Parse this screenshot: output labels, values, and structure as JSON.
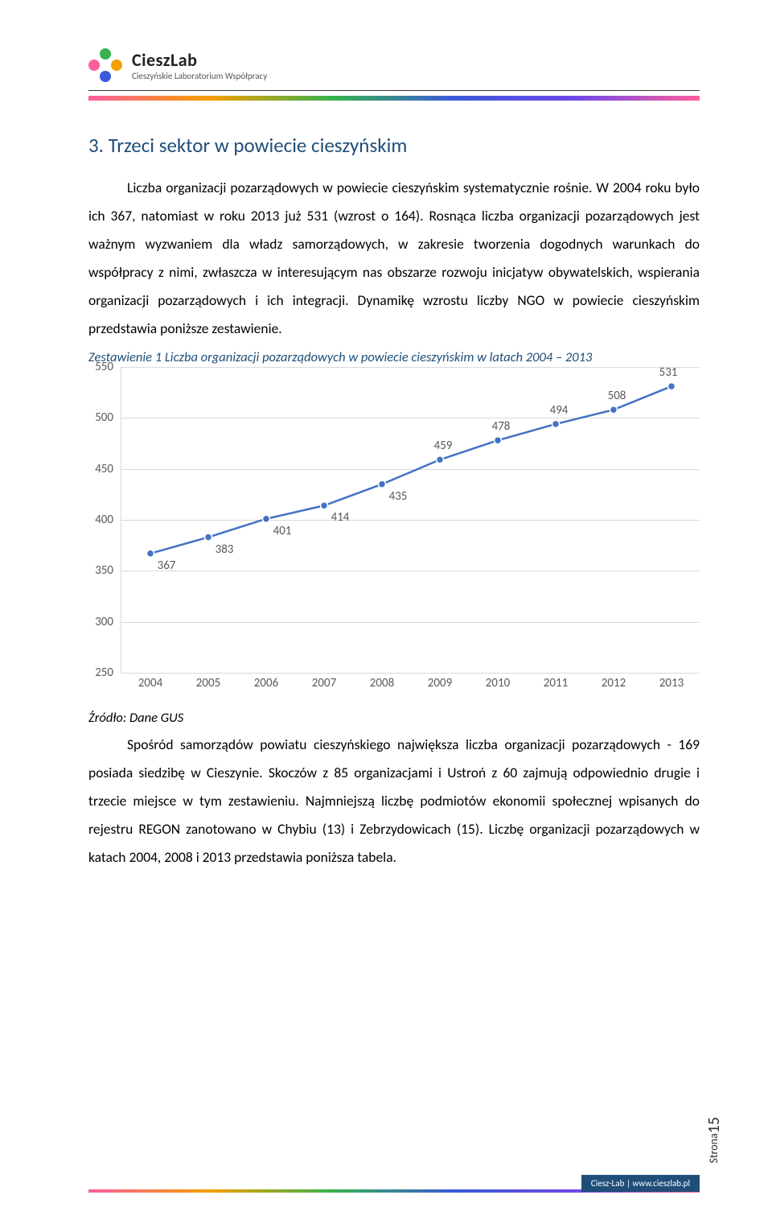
{
  "logo": {
    "title": "CieszLab",
    "subtitle": "Cieszyńskie Laboratorium Współpracy"
  },
  "heading": "3. Trzeci sektor w powiecie cieszyńskim",
  "paragraph1": "Liczba organizacji pozarządowych w powiecie cieszyńskim systematycznie rośnie. W 2004 roku było ich 367, natomiast w roku 2013 już 531 (wzrost o 164). Rosnąca liczba organizacji pozarządowych jest ważnym wyzwaniem dla władz samorządowych, w zakresie tworzenia dogodnych warunkach do współpracy z nimi, zwłaszcza w interesującym nas obszarze rozwoju inicjatyw obywatelskich, wspierania organizacji pozarządowych i ich integracji. Dynamikę wzrostu liczby NGO w powiecie cieszyńskim przedstawia poniższe zestawienie.",
  "chart": {
    "title": "Zestawienie 1 Liczba organizacji pozarządowych w powiecie cieszyńskim w latach 2004 – 2013",
    "type": "line",
    "x_labels": [
      "2004",
      "2005",
      "2006",
      "2007",
      "2008",
      "2009",
      "2010",
      "2011",
      "2012",
      "2013"
    ],
    "y_values": [
      367,
      383,
      401,
      414,
      435,
      459,
      478,
      494,
      508,
      531
    ],
    "ylim": [
      250,
      550
    ],
    "ytick_step": 50,
    "line_color": "#4472c4",
    "marker_color": "#4472c4",
    "marker_border": "#ffffff",
    "grid_color": "#d9d9d9",
    "label_color": "#595959",
    "background_color": "#ffffff",
    "label_fontsize": 15,
    "marker_size": 7
  },
  "source": "Źródło: Dane GUS",
  "paragraph2": "Spośród samorządów powiatu cieszyńskiego największa liczba organizacji pozarządowych - 169 posiada siedzibę w Cieszynie. Skoczów z 85 organizacjami i Ustroń z 60 zajmują odpowiednio drugie i trzecie miejsce w tym zestawieniu. Najmniejszą liczbę podmiotów ekonomii społecznej wpisanych do rejestru REGON zanotowano w Chybiu (13) i Zebrzydowicach (15). Liczbę organizacji pozarządowych w katach 2004, 2008 i 2013 przedstawia poniższa tabela.",
  "page_label": "Strona",
  "page_number": "15",
  "footer_badge": "Ciesz-Lab | www.cieszlab.pl"
}
